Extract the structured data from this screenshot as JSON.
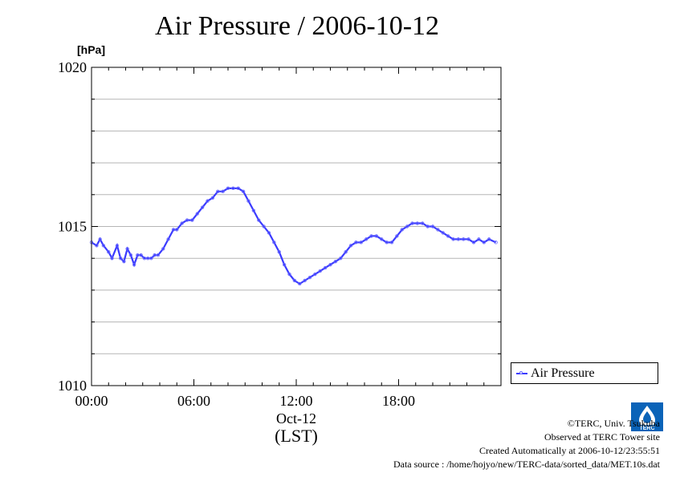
{
  "title": "Air Pressure / 2006-10-12",
  "unit_label": "[hPa]",
  "legend": {
    "label": "Air Pressure"
  },
  "footer": {
    "copyright": "©TERC, Univ. Tsukuba",
    "observed": "Observed at TERC Tower site",
    "created": "Created Automatically at 2006-10-12/23:55:51",
    "source": "Data source : /home/hojyo/new/TERC-data/sorted_data/MET.10s.dat"
  },
  "logo": {
    "text": "TERC",
    "icon": "terc-logo-icon",
    "color": "#0a63b8"
  },
  "colors": {
    "series": "#3a3aff",
    "marker": "#6a6aff",
    "grid": "#b5b5b5"
  },
  "chart_data": {
    "type": "line",
    "title": "Air Pressure / 2006-10-12",
    "xlabel": "Oct-12",
    "xlabel2": "(LST)",
    "ylabel": "[hPa]",
    "ylim": [
      1010,
      1020
    ],
    "xlim": [
      0,
      24
    ],
    "x_ticks": [
      {
        "value": 0,
        "label": "00:00"
      },
      {
        "value": 6,
        "label": "06:00"
      },
      {
        "value": 12,
        "label": "12:00"
      },
      {
        "value": 18,
        "label": "18:00"
      }
    ],
    "y_ticks": [
      {
        "value": 1010,
        "label": "1010"
      },
      {
        "value": 1015,
        "label": "1015"
      },
      {
        "value": 1020,
        "label": "1020"
      }
    ],
    "y_grid": [
      1011,
      1012,
      1013,
      1014,
      1015,
      1016,
      1017,
      1018,
      1019
    ],
    "grid": true,
    "legend_position": "right",
    "series": [
      {
        "name": "Air Pressure",
        "x": [
          0,
          0.3,
          0.5,
          0.7,
          1.0,
          1.2,
          1.5,
          1.7,
          1.9,
          2.1,
          2.3,
          2.5,
          2.7,
          2.9,
          3.1,
          3.3,
          3.5,
          3.7,
          3.9,
          4.2,
          4.5,
          4.8,
          5.0,
          5.3,
          5.6,
          5.9,
          6.2,
          6.5,
          6.8,
          7.1,
          7.4,
          7.7,
          8.0,
          8.3,
          8.6,
          8.9,
          9.2,
          9.5,
          9.8,
          10.1,
          10.4,
          10.7,
          11.0,
          11.3,
          11.6,
          11.9,
          12.2,
          12.5,
          12.8,
          13.1,
          13.4,
          13.7,
          14.0,
          14.3,
          14.6,
          14.9,
          15.2,
          15.5,
          15.8,
          16.1,
          16.4,
          16.7,
          17.0,
          17.3,
          17.6,
          17.9,
          18.2,
          18.5,
          18.8,
          19.1,
          19.4,
          19.7,
          20.0,
          20.3,
          20.6,
          20.9,
          21.2,
          21.5,
          21.8,
          22.1,
          22.4,
          22.7,
          23.0,
          23.3,
          23.7
        ],
        "values": [
          1014.5,
          1014.4,
          1014.6,
          1014.4,
          1014.2,
          1014.0,
          1014.4,
          1014.0,
          1013.9,
          1014.3,
          1014.1,
          1013.8,
          1014.1,
          1014.1,
          1014.0,
          1014.0,
          1014.0,
          1014.1,
          1014.1,
          1014.3,
          1014.6,
          1014.9,
          1014.9,
          1015.1,
          1015.2,
          1015.2,
          1015.4,
          1015.6,
          1015.8,
          1015.9,
          1016.1,
          1016.1,
          1016.2,
          1016.2,
          1016.2,
          1016.1,
          1015.8,
          1015.5,
          1015.2,
          1015.0,
          1014.8,
          1014.5,
          1014.2,
          1013.8,
          1013.5,
          1013.3,
          1013.2,
          1013.3,
          1013.4,
          1013.5,
          1013.6,
          1013.7,
          1013.8,
          1013.9,
          1014.0,
          1014.2,
          1014.4,
          1014.5,
          1014.5,
          1014.6,
          1014.7,
          1014.7,
          1014.6,
          1014.5,
          1014.5,
          1014.7,
          1014.9,
          1015.0,
          1015.1,
          1015.1,
          1015.1,
          1015.0,
          1015.0,
          1014.9,
          1014.8,
          1014.7,
          1014.6,
          1014.6,
          1014.6,
          1014.6,
          1014.5,
          1014.6,
          1014.5,
          1014.6,
          1014.5
        ]
      }
    ]
  }
}
